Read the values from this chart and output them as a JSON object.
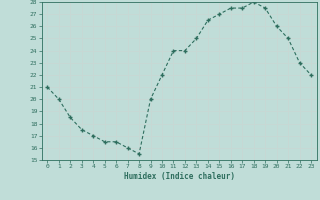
{
  "x": [
    0,
    1,
    2,
    3,
    4,
    5,
    6,
    7,
    8,
    9,
    10,
    11,
    12,
    13,
    14,
    15,
    16,
    17,
    18,
    19,
    20,
    21,
    22,
    23
  ],
  "y": [
    21,
    20,
    18.5,
    17.5,
    17,
    16.5,
    16.5,
    16,
    15.5,
    20,
    22,
    24,
    24,
    25,
    26.5,
    27,
    27.5,
    27.5,
    28,
    27.5,
    26,
    25,
    23,
    22
  ],
  "ylim": [
    15,
    28
  ],
  "yticks": [
    15,
    16,
    17,
    18,
    19,
    20,
    21,
    22,
    23,
    24,
    25,
    26,
    27,
    28
  ],
  "xlim": [
    -0.5,
    23.5
  ],
  "xticks": [
    0,
    1,
    2,
    3,
    4,
    5,
    6,
    7,
    8,
    9,
    10,
    11,
    12,
    13,
    14,
    15,
    16,
    17,
    18,
    19,
    20,
    21,
    22,
    23
  ],
  "xlabel": "Humidex (Indice chaleur)",
  "line_color": "#2e6e5e",
  "bg_color": "#c0ddd8",
  "grid_color": "#b0ccc8",
  "marker": "+"
}
